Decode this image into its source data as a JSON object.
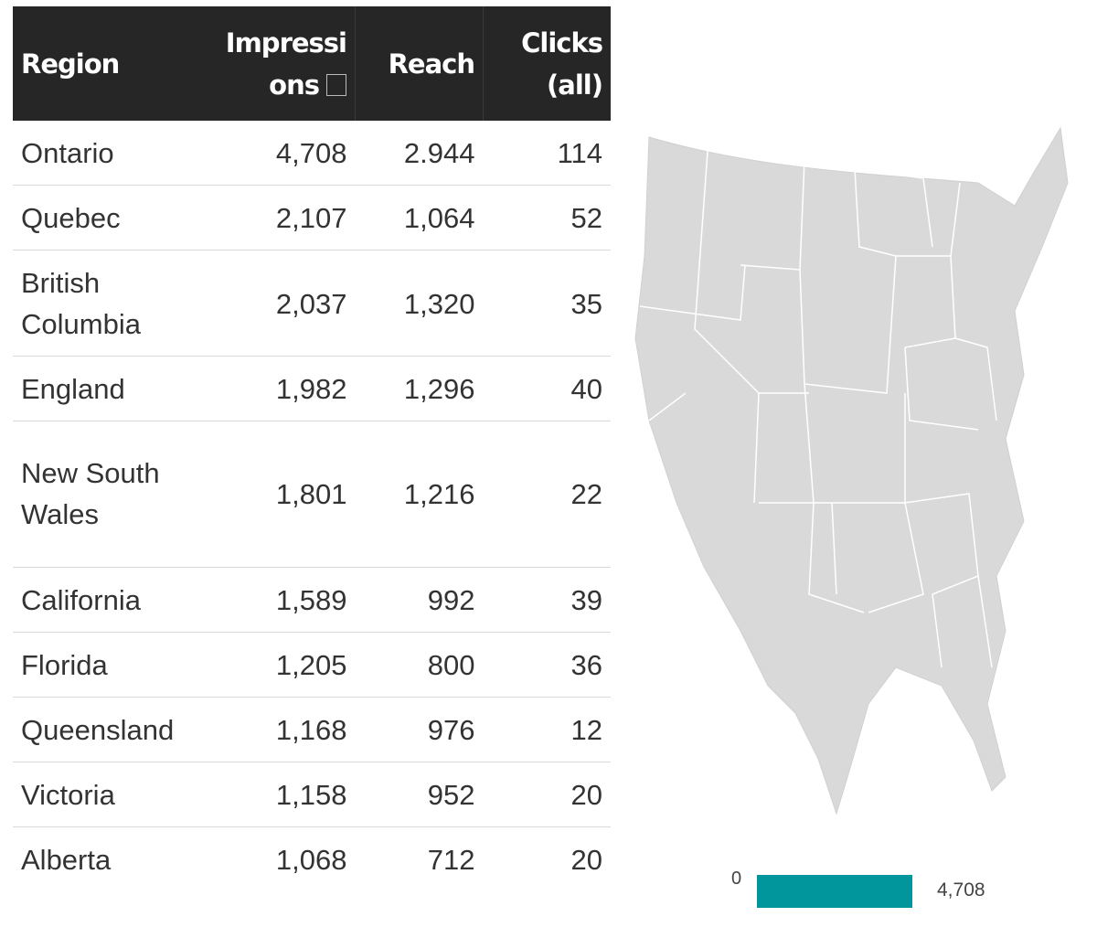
{
  "table": {
    "headers": {
      "region": "Region",
      "impressions": "Impressions",
      "reach": "Reach",
      "clicks": "Clicks (all)"
    },
    "rows": [
      {
        "region": "Ontario",
        "impressions": "4,708",
        "reach": "2.944",
        "clicks": "114"
      },
      {
        "region": "Quebec",
        "impressions": "2,107",
        "reach": "1,064",
        "clicks": "52"
      },
      {
        "region": "British Columbia",
        "impressions": "2,037",
        "reach": "1,320",
        "clicks": "35"
      },
      {
        "region": "England",
        "impressions": "1,982",
        "reach": "1,296",
        "clicks": "40"
      },
      {
        "region": "New South Wales",
        "impressions": "1,801",
        "reach": "1,216",
        "clicks": "22"
      },
      {
        "region": "California",
        "impressions": "1,589",
        "reach": "992",
        "clicks": "39"
      },
      {
        "region": "Florida",
        "impressions": "1,205",
        "reach": "800",
        "clicks": "36"
      },
      {
        "region": "Queensland",
        "impressions": "1,168",
        "reach": "976",
        "clicks": "12"
      },
      {
        "region": "Victoria",
        "impressions": "1,158",
        "reach": "952",
        "clicks": "20"
      },
      {
        "region": "Alberta",
        "impressions": "1,068",
        "reach": "712",
        "clicks": "20"
      }
    ]
  },
  "legend": {
    "min_label": "0",
    "max_label": "4,708",
    "color": "#00969c"
  },
  "colors": {
    "header_bg": "#262626",
    "map_fill": "#d9d9d9"
  }
}
